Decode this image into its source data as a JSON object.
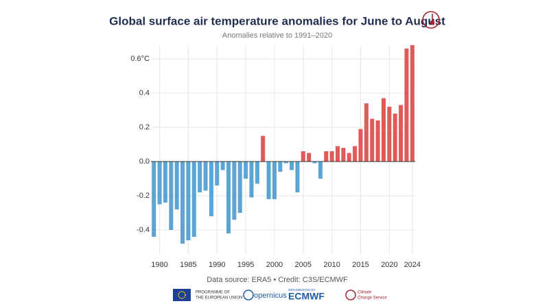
{
  "chart_data": {
    "type": "bar",
    "title": "Global surface air temperature anomalies for June to August",
    "subtitle": "Anomalies relative to 1991–2020",
    "source": "Data source: ERA5 • Credit: C3S/ECMWF",
    "x": [
      1979,
      1980,
      1981,
      1982,
      1983,
      1984,
      1985,
      1986,
      1987,
      1988,
      1989,
      1990,
      1991,
      1992,
      1993,
      1994,
      1995,
      1996,
      1997,
      1998,
      1999,
      2000,
      2001,
      2002,
      2003,
      2004,
      2005,
      2006,
      2007,
      2008,
      2009,
      2010,
      2011,
      2012,
      2013,
      2014,
      2015,
      2016,
      2017,
      2018,
      2019,
      2020,
      2021,
      2022,
      2023,
      2024
    ],
    "values": [
      -0.44,
      -0.25,
      -0.24,
      -0.4,
      -0.28,
      -0.48,
      -0.46,
      -0.44,
      -0.18,
      -0.17,
      -0.32,
      -0.14,
      -0.05,
      -0.42,
      -0.34,
      -0.3,
      -0.1,
      -0.21,
      -0.13,
      0.15,
      -0.22,
      -0.22,
      -0.06,
      -0.01,
      -0.05,
      -0.18,
      0.06,
      0.05,
      -0.01,
      -0.1,
      0.06,
      0.06,
      0.09,
      0.08,
      0.05,
      0.09,
      0.19,
      0.34,
      0.25,
      0.24,
      0.37,
      0.32,
      0.28,
      0.33,
      0.66,
      0.68
    ],
    "positive_color": "#e05a5a",
    "negative_color": "#5ba4d3",
    "xlim": [
      1978.5,
      2024.5
    ],
    "xticks": [
      1980,
      1985,
      1990,
      1995,
      2000,
      2005,
      2010,
      2015,
      2020,
      2024
    ],
    "ylim": [
      -0.54,
      0.68
    ],
    "yticks": [
      -0.4,
      -0.2,
      {
        "value": 0,
        "label": "0.0"
      },
      0.2,
      0.4,
      {
        "value": 0.6,
        "label": "0.6°C"
      }
    ],
    "grid": true
  },
  "logos": {
    "eu": [
      "PROGRAMME OF",
      "THE EUROPEAN UNION"
    ],
    "copernicus": "opernicus",
    "ecmwf_note": "IMPLEMENTED BY",
    "ecmwf": "ECMWF",
    "c3s": [
      "Climate",
      "Change Service"
    ]
  }
}
